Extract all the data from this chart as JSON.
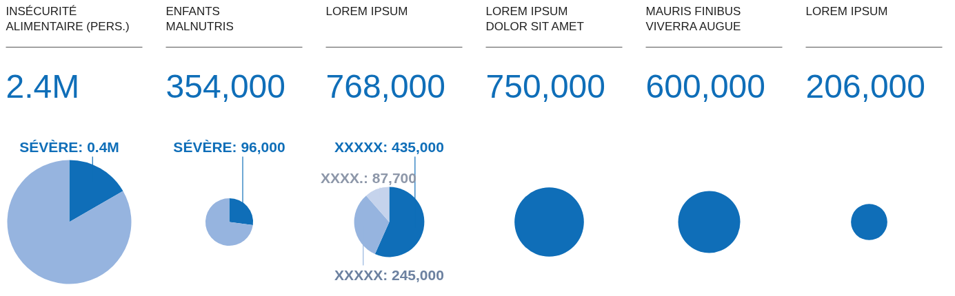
{
  "chart_data": [
    {
      "type": "pie",
      "title": "INSÉCURITÉ\nALIMENTAIRE (PERS.)",
      "subtitle": "2.4M",
      "categories": [
        "SÉVÈRE",
        null
      ],
      "values": [
        400000,
        2000000
      ],
      "colors": [
        "#0f6eb8",
        "#96b4df"
      ],
      "value_labels": [
        "0.4M",
        null
      ]
    },
    {
      "type": "pie",
      "title": "ENFANTS\nMALNUTRIS",
      "subtitle": "354,000",
      "categories": [
        "SÉVÈRE",
        null
      ],
      "values": [
        96000,
        258000
      ],
      "colors": [
        "#0f6eb8",
        "#96b4df"
      ],
      "value_labels": [
        "96,000",
        null
      ]
    },
    {
      "type": "pie",
      "title": "LOREM IPSUM",
      "subtitle": "768,000",
      "categories": [
        "XXXXX",
        "XXXXX",
        "XXXX."
      ],
      "values": [
        435000,
        245000,
        87700
      ],
      "colors": [
        "#0f6eb8",
        "#96b4df",
        "#c5d3ec"
      ],
      "value_labels": [
        "435,000",
        "245,000",
        "87,700"
      ]
    },
    {
      "type": "pie",
      "title": "LOREM IPSUM\nDOLOR SIT AMET",
      "categories": [
        null
      ],
      "values": [
        750000
      ],
      "colors": [
        "#0f6eb8"
      ],
      "value_labels": [
        "750,000"
      ]
    },
    {
      "type": "pie",
      "title": "MAURIS FINIBUS\nVIVERRA AUGUE",
      "categories": [
        null
      ],
      "values": [
        600000
      ],
      "colors": [
        "#0f6eb8"
      ],
      "value_labels": [
        "600,000"
      ]
    },
    {
      "type": "pie",
      "title": "LOREM IPSUM",
      "categories": [
        null
      ],
      "values": [
        206000
      ],
      "colors": [
        "#0f6eb8"
      ],
      "value_labels": [
        "206,000"
      ]
    }
  ]
}
